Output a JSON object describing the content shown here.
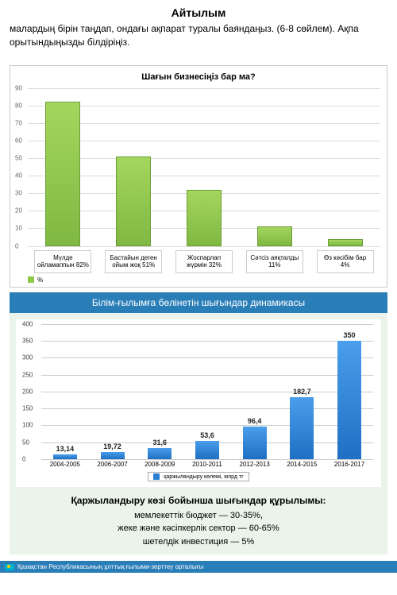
{
  "heading": "Айтылым",
  "instruction": "малардың бірін таңдап, ондағы ақпарат туралы баяндаңыз. (6-8 сөйлем). Ақпа орытындыңызды білдіріңіз.",
  "chart1": {
    "type": "bar",
    "title": "Шағын бизнесіңіз бар ма?",
    "ylim": [
      0,
      90
    ],
    "ytick_step": 10,
    "bar_color_top": "#a4d65e",
    "bar_color_bottom": "#7fb842",
    "bar_border": "#6a9e38",
    "grid_color": "#dddddd",
    "categories": [
      {
        "label": "Мүлде ойламаппын 82%",
        "value": 82
      },
      {
        "label": "Бастайын деген ойым жоқ 51%",
        "value": 51
      },
      {
        "label": "Жоспарлап жүрмін 32%",
        "value": 32
      },
      {
        "label": "Сәтсіз аяқталды 11%",
        "value": 11
      },
      {
        "label": "Өз кәсібім бар 4%",
        "value": 4
      }
    ],
    "legend": "%"
  },
  "banner": "Білім-ғылымға бөлінетін шығындар динамикасы",
  "chart2": {
    "type": "bar",
    "ylim": [
      0,
      400
    ],
    "ytick_step": 50,
    "bar_color_top": "#4a9eea",
    "bar_color_bottom": "#1f6fc4",
    "grid_color": "#cccccc",
    "background": "#eaf4ea",
    "legend": "қаржыландыру көлемі, млрд тг",
    "data": [
      {
        "period": "2004-2005",
        "value": 13.14,
        "label": "13,14"
      },
      {
        "period": "2006-2007",
        "value": 19.72,
        "label": "19,72"
      },
      {
        "period": "2008-2009",
        "value": 31.6,
        "label": "31,6"
      },
      {
        "period": "2010-2011",
        "value": 53.6,
        "label": "53,6"
      },
      {
        "period": "2012-2013",
        "value": 96.4,
        "label": "96,4"
      },
      {
        "period": "2014-2015",
        "value": 182.7,
        "label": "182,7"
      },
      {
        "period": "2016-2017",
        "value": 350,
        "label": "350"
      }
    ]
  },
  "structure": {
    "title": "Қаржыландыру көзі бойынша шығындар құрылымы:",
    "lines": [
      "мемлекеттік бюджет  — 30-35%,",
      "жеке және кәсіпкерлік сектор  — 60-65%",
      "шетелдік инвестиция  — 5%"
    ]
  },
  "footer": "Қазақстан Республикасының ұлттық ғылыми-зерттеу орталығы"
}
